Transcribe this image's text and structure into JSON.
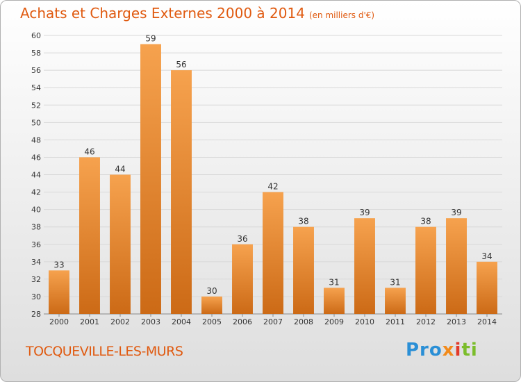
{
  "header": {
    "title": "Achats et Charges Externes 2000 à 2014",
    "subtitle": "(en milliers d'€)"
  },
  "footer": {
    "commune": "TOCQUEVILLE-LES-MURS",
    "logo": {
      "text": "Proxiti",
      "parts": [
        "Pro",
        "x",
        "i",
        "ti"
      ]
    }
  },
  "colors": {
    "title": "#e05a10",
    "bar_light": "#f6a24e",
    "bar_dark": "#cc6a16",
    "grid": "#d8d8d8",
    "axis_text": "#333333"
  },
  "chart_data": {
    "type": "bar",
    "title": "Achats et Charges Externes 2000 à 2014",
    "subtitle": "(en milliers d'€)",
    "categories": [
      "2000",
      "2001",
      "2002",
      "2003",
      "2004",
      "2005",
      "2006",
      "2007",
      "2008",
      "2009",
      "2010",
      "2011",
      "2012",
      "2013",
      "2014"
    ],
    "values": [
      33,
      46,
      44,
      59,
      56,
      30,
      36,
      42,
      38,
      31,
      39,
      31,
      38,
      39,
      34
    ],
    "ylim": [
      28,
      60
    ],
    "yticks": [
      28,
      30,
      32,
      34,
      36,
      38,
      40,
      42,
      44,
      46,
      48,
      50,
      52,
      54,
      56,
      58,
      60
    ],
    "grid": true,
    "data_labels": true,
    "xlabel": "",
    "ylabel": ""
  }
}
